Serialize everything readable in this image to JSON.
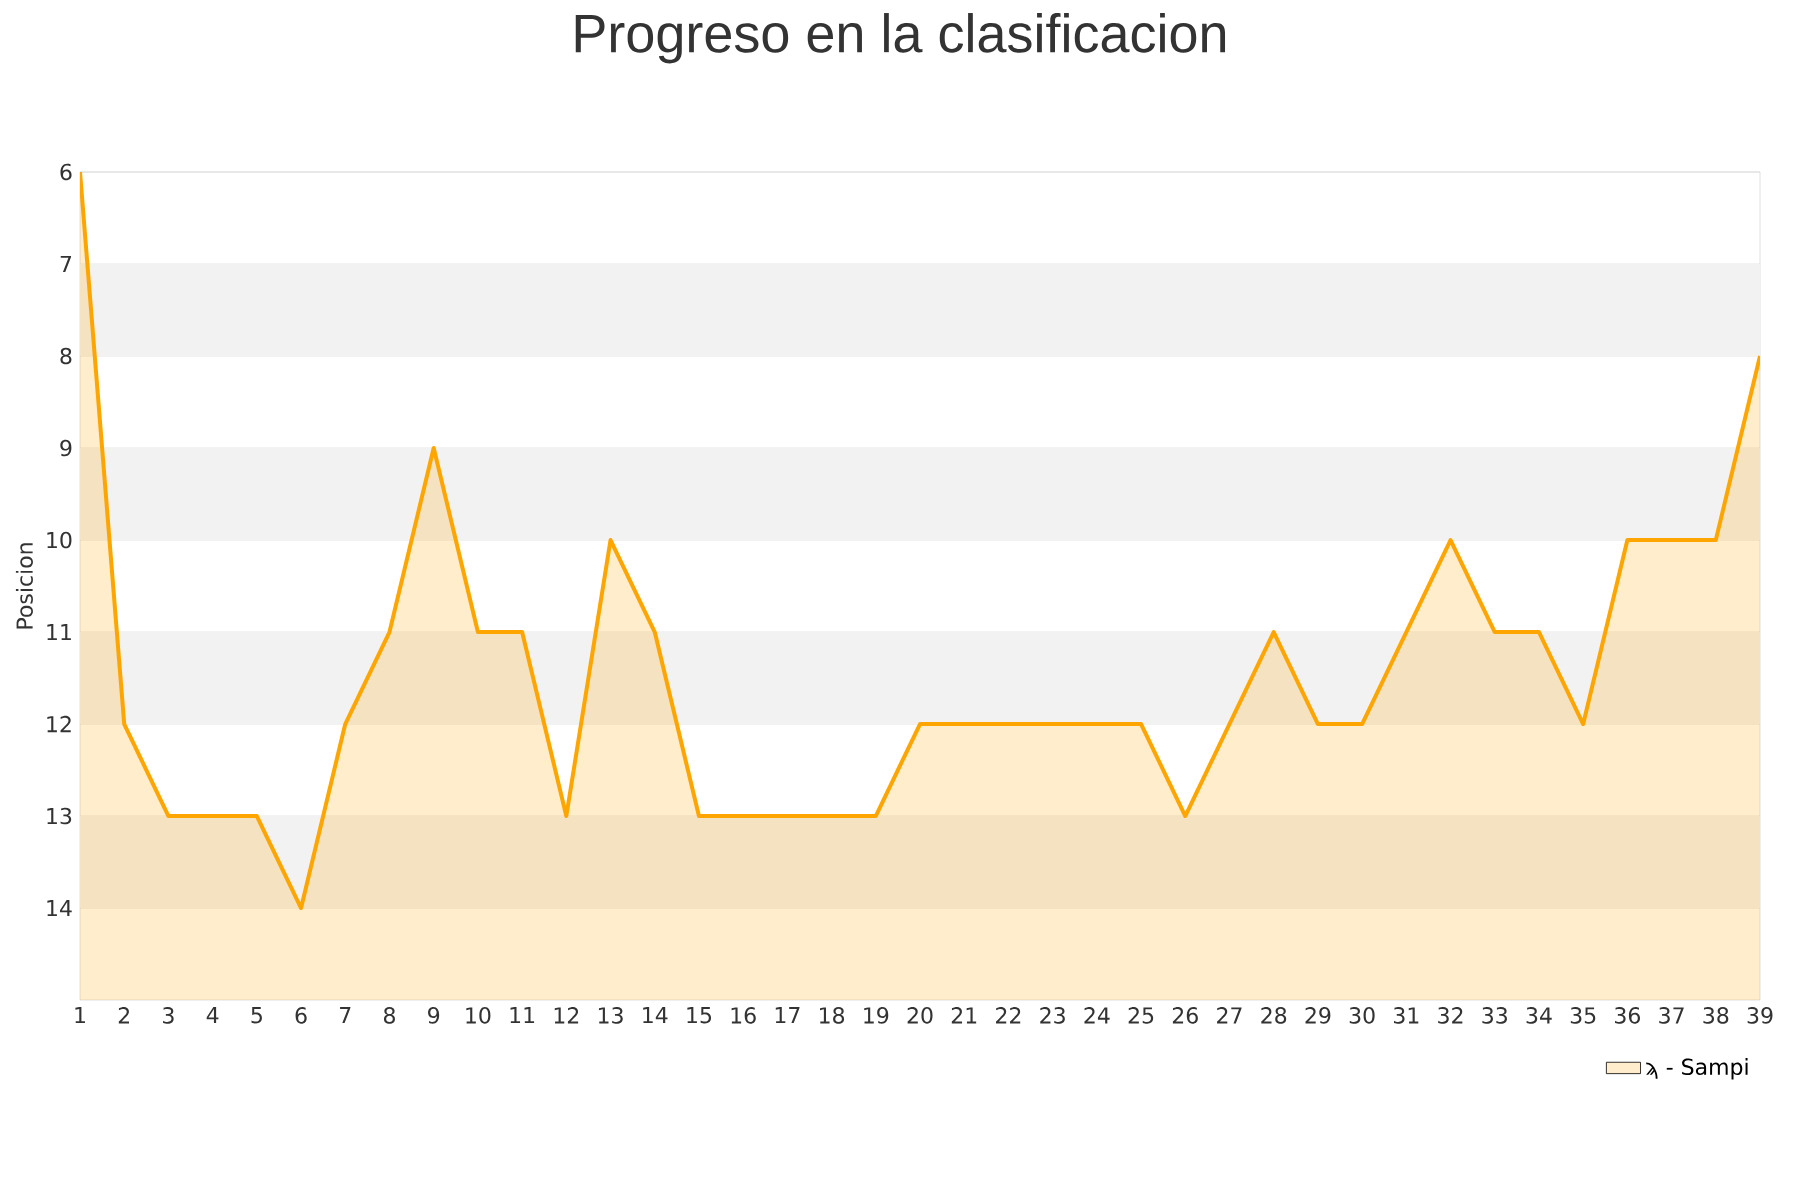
{
  "chart_data": {
    "type": "area",
    "title": "Progreso en la clasificacion",
    "ylabel": "Posicion",
    "x": [
      1,
      2,
      3,
      4,
      5,
      6,
      7,
      8,
      9,
      10,
      11,
      12,
      13,
      14,
      15,
      16,
      17,
      18,
      19,
      20,
      21,
      22,
      23,
      24,
      25,
      26,
      27,
      28,
      29,
      30,
      31,
      32,
      33,
      34,
      35,
      36,
      37,
      38,
      39
    ],
    "series": [
      {
        "name": "ϡ - Sampi",
        "color": "#ffa500",
        "values": [
          6,
          12,
          13,
          13,
          13,
          14,
          12,
          11,
          9,
          11,
          11,
          13,
          10,
          11,
          13,
          13,
          13,
          13,
          13,
          12,
          12,
          12,
          12,
          12,
          12,
          13,
          12,
          11,
          12,
          12,
          11,
          10,
          11,
          11,
          12,
          10,
          10,
          10,
          8
        ]
      }
    ],
    "xlim": [
      1,
      39
    ],
    "xticks": [
      1,
      2,
      3,
      4,
      5,
      6,
      7,
      8,
      9,
      10,
      11,
      12,
      13,
      14,
      15,
      16,
      17,
      18,
      19,
      20,
      21,
      22,
      23,
      24,
      25,
      26,
      27,
      28,
      29,
      30,
      31,
      32,
      33,
      34,
      35,
      36,
      37,
      38,
      39
    ],
    "ylim": [
      15,
      6
    ],
    "yticks": [
      6,
      7,
      8,
      9,
      10,
      11,
      12,
      13,
      14
    ],
    "bands": [
      {
        "axis": "y",
        "from": 7,
        "to": 8,
        "color": "#f2f2f2"
      },
      {
        "axis": "y",
        "from": 9,
        "to": 10,
        "color": "#f2f2f2"
      },
      {
        "axis": "y",
        "from": 11,
        "to": 12,
        "color": "#f2f2f2"
      },
      {
        "axis": "y",
        "from": 13,
        "to": 14,
        "color": "#f2f2f2"
      }
    ],
    "grid": "y",
    "legend": "bottom right",
    "marker": "none",
    "line_style": "solid"
  }
}
